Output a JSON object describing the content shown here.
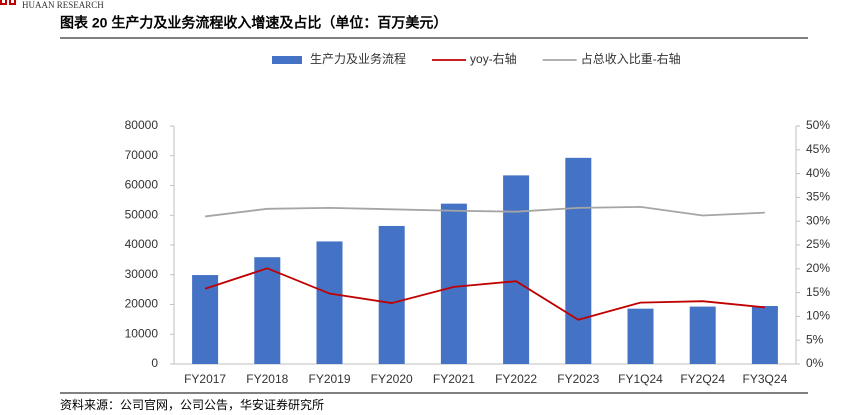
{
  "header": {
    "brand": "HUAAN RESEARCH"
  },
  "footer": {
    "source": "资料来源：公司官网，公司公告，华安证券研究所"
  },
  "chart_data": {
    "type": "bar",
    "title": "图表 20 生产力及业务流程收入增速及占比（单位：百万美元）",
    "categories": [
      "FY2017",
      "FY2018",
      "FY2019",
      "FY2020",
      "FY2021",
      "FY2022",
      "FY2023",
      "FY1Q24",
      "FY2Q24",
      "FY3Q24"
    ],
    "series": [
      {
        "name": "生产力及业务流程",
        "type": "bar",
        "color": "#4472c4",
        "values": [
          29900,
          35900,
          41200,
          46400,
          53900,
          63400,
          69300,
          18600,
          19300,
          19500
        ]
      },
      {
        "name": "yoy-右轴",
        "type": "line",
        "axis": "y2",
        "color": "#c00000",
        "values": [
          15.8,
          20.1,
          14.8,
          12.8,
          16.2,
          17.4,
          9.3,
          12.9,
          13.2,
          11.9
        ]
      },
      {
        "name": "占总收入比重-右轴",
        "type": "line",
        "axis": "y2",
        "color": "#a5a5a5",
        "values": [
          31.0,
          32.6,
          32.8,
          32.5,
          32.2,
          32.0,
          32.8,
          33.0,
          31.2,
          31.8
        ]
      }
    ],
    "ylim": [
      0,
      80000
    ],
    "yticks": [
      0,
      10000,
      20000,
      30000,
      40000,
      50000,
      60000,
      70000,
      80000
    ],
    "y2lim": [
      0,
      50
    ],
    "y2ticks": [
      {
        "value": 0,
        "label": "0%"
      },
      {
        "value": 5,
        "label": "5%"
      },
      {
        "value": 10,
        "label": "10%"
      },
      {
        "value": 15,
        "label": "15%"
      },
      {
        "value": 20,
        "label": "20%"
      },
      {
        "value": 25,
        "label": "25%"
      },
      {
        "value": 30,
        "label": "30%"
      },
      {
        "value": 35,
        "label": "35%"
      },
      {
        "value": 40,
        "label": "40%"
      },
      {
        "value": 45,
        "label": "45%"
      },
      {
        "value": 50,
        "label": "50%"
      }
    ],
    "legend": "top"
  }
}
